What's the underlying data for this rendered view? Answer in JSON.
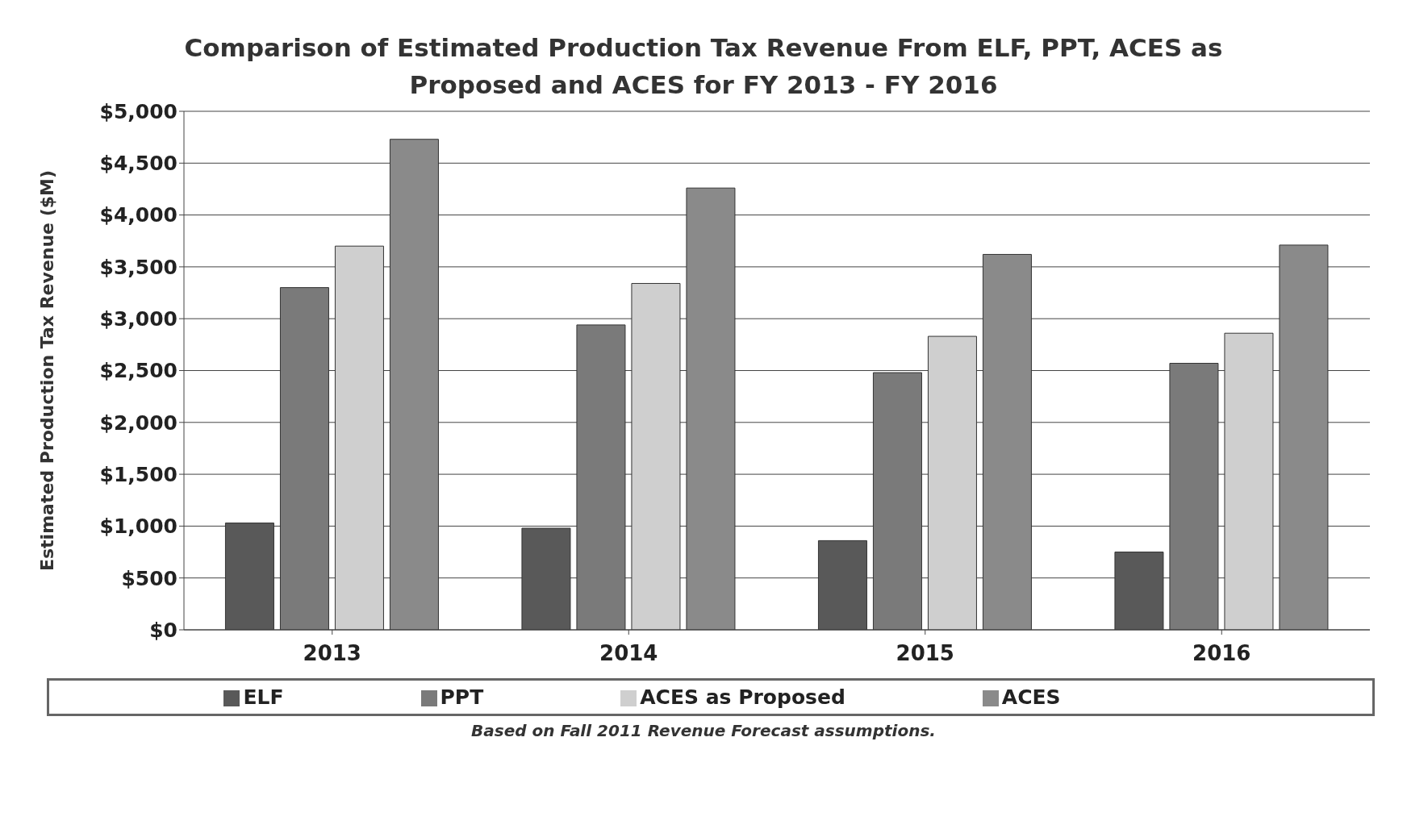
{
  "chart_data": {
    "type": "bar",
    "title": "Comparison of Estimated Production Tax Revenue From ELF, PPT, ACES as Proposed and ACES for FY 2013 - FY 2016",
    "ylabel": "Estimated Production Tax Revenue ($M)",
    "categories": [
      "2013",
      "2014",
      "2015",
      "2016"
    ],
    "series": [
      {
        "name": "ELF",
        "color": "#595959",
        "values": [
          1030,
          980,
          860,
          750
        ]
      },
      {
        "name": "PPT",
        "color": "#7a7a7a",
        "values": [
          3300,
          2940,
          2480,
          2570
        ]
      },
      {
        "name": "ACES as Proposed",
        "color": "#cfcfcf",
        "values": [
          3700,
          3340,
          2830,
          2860
        ]
      },
      {
        "name": "ACES",
        "color": "#8a8a8a",
        "values": [
          4730,
          4260,
          3620,
          3710
        ]
      }
    ],
    "ylim": [
      0,
      5000
    ],
    "yticks": [
      {
        "value": 0,
        "label": "$0"
      },
      {
        "value": 500,
        "label": "$500"
      },
      {
        "value": 1000,
        "label": "$1,000"
      },
      {
        "value": 1500,
        "label": "$1,500"
      },
      {
        "value": 2000,
        "label": "$2,000"
      },
      {
        "value": 2500,
        "label": "$2,500"
      },
      {
        "value": 3000,
        "label": "$3,000"
      },
      {
        "value": 3500,
        "label": "$3,500"
      },
      {
        "value": 4000,
        "label": "$4,000"
      },
      {
        "value": 4500,
        "label": "$4,500"
      },
      {
        "value": 5000,
        "label": "$5,000"
      }
    ],
    "grid": "y",
    "legend": "bottom",
    "annotations": [
      "Based on Fall 2011 Revenue Forecast assumptions."
    ]
  }
}
